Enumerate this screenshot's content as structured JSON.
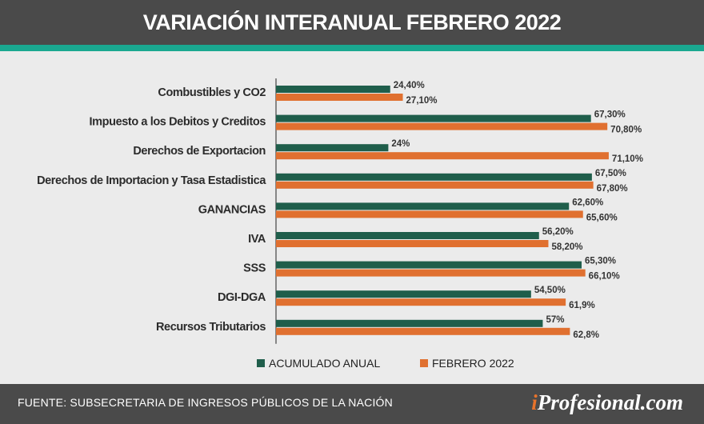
{
  "header": {
    "title": "VARIACIÓN INTERANUAL FEBRERO 2022"
  },
  "footer": {
    "source": "FUENTE: SUBSECRETARIA DE INGRESOS PÚBLICOS DE LA NACIÓN",
    "brand_i": "i",
    "brand_rest": "Profesional.com"
  },
  "colors": {
    "header_bg": "#4a4a4a",
    "accent_band": "#1aa890",
    "series_acumulado": "#1f5e4b",
    "series_febrero": "#e07030",
    "background": "#ebebeb"
  },
  "chart_data": {
    "type": "bar",
    "orientation": "horizontal",
    "categories": [
      "Combustibles y CO2",
      "Impuesto a los Debitos y Creditos",
      "Derechos de Exportacion",
      "Derechos de Importacion y Tasa Estadistica",
      "GANANCIAS",
      "IVA",
      "SSS",
      "DGI-DGA",
      "Recursos Tributarios"
    ],
    "series": [
      {
        "name": "ACUMULADO ANUAL",
        "color": "#1f5e4b",
        "values": [
          24.4,
          67.3,
          24,
          67.5,
          62.6,
          56.2,
          65.3,
          54.5,
          57
        ],
        "labels": [
          "24,40%",
          "67,30%",
          "24%",
          "67,50%",
          "62,60%",
          "56,20%",
          "65,30%",
          "54,50%",
          "57%"
        ]
      },
      {
        "name": "FEBRERO 2022",
        "color": "#e07030",
        "values": [
          27.1,
          70.8,
          71.1,
          67.8,
          65.6,
          58.2,
          66.1,
          61.9,
          62.8
        ],
        "labels": [
          "27,10%",
          "70,80%",
          "71,10%",
          "67,80%",
          "65,60%",
          "58,20%",
          "66,10%",
          "61,9%",
          "62,8%"
        ]
      }
    ],
    "xlim": [
      0,
      80
    ],
    "grid": false,
    "legend_position": "bottom"
  }
}
